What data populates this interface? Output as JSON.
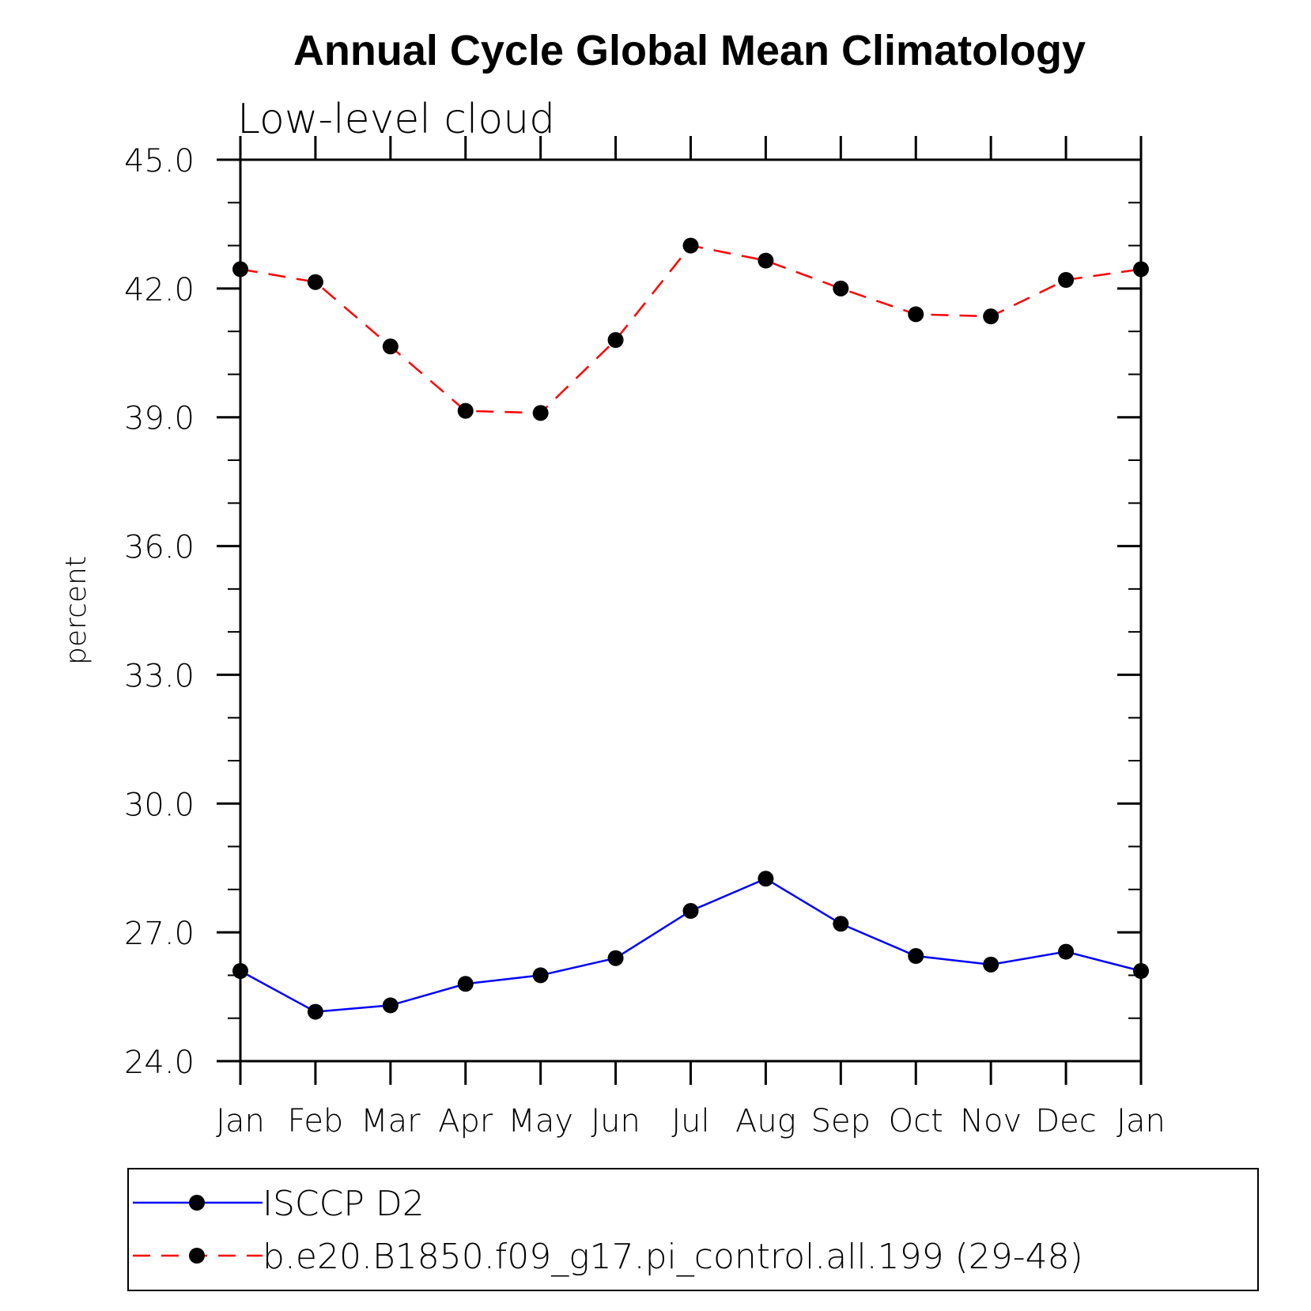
{
  "chart_data": {
    "type": "line",
    "title": "Annual Cycle Global Mean Climatology",
    "subtitle": "Low-level cloud",
    "xlabel": "",
    "ylabel": "percent",
    "categories": [
      "Jan",
      "Feb",
      "Mar",
      "Apr",
      "May",
      "Jun",
      "Jul",
      "Aug",
      "Sep",
      "Oct",
      "Nov",
      "Dec",
      "Jan"
    ],
    "ylim": [
      24.0,
      45.0
    ],
    "yticks": [
      "24.0",
      "27.0",
      "30.0",
      "33.0",
      "36.0",
      "39.0",
      "42.0",
      "45.0"
    ],
    "grid": false,
    "legend_position": "bottom",
    "series": [
      {
        "name": "ISCCP D2",
        "color": "#0000ff",
        "dash": "solid",
        "marker": "filled-circle",
        "values": [
          26.1,
          25.15,
          25.3,
          25.8,
          26.0,
          26.4,
          27.5,
          28.25,
          27.2,
          26.45,
          26.25,
          26.55,
          26.1
        ]
      },
      {
        "name": "b.e20.B1850.f09_g17.pi_control.all.199 (29-48)",
        "color": "#ff0000",
        "dash": "dashed",
        "marker": "filled-circle",
        "values": [
          42.45,
          42.15,
          40.65,
          39.15,
          39.1,
          40.8,
          43.0,
          42.65,
          42.0,
          41.4,
          41.35,
          42.2,
          42.45
        ]
      }
    ]
  }
}
